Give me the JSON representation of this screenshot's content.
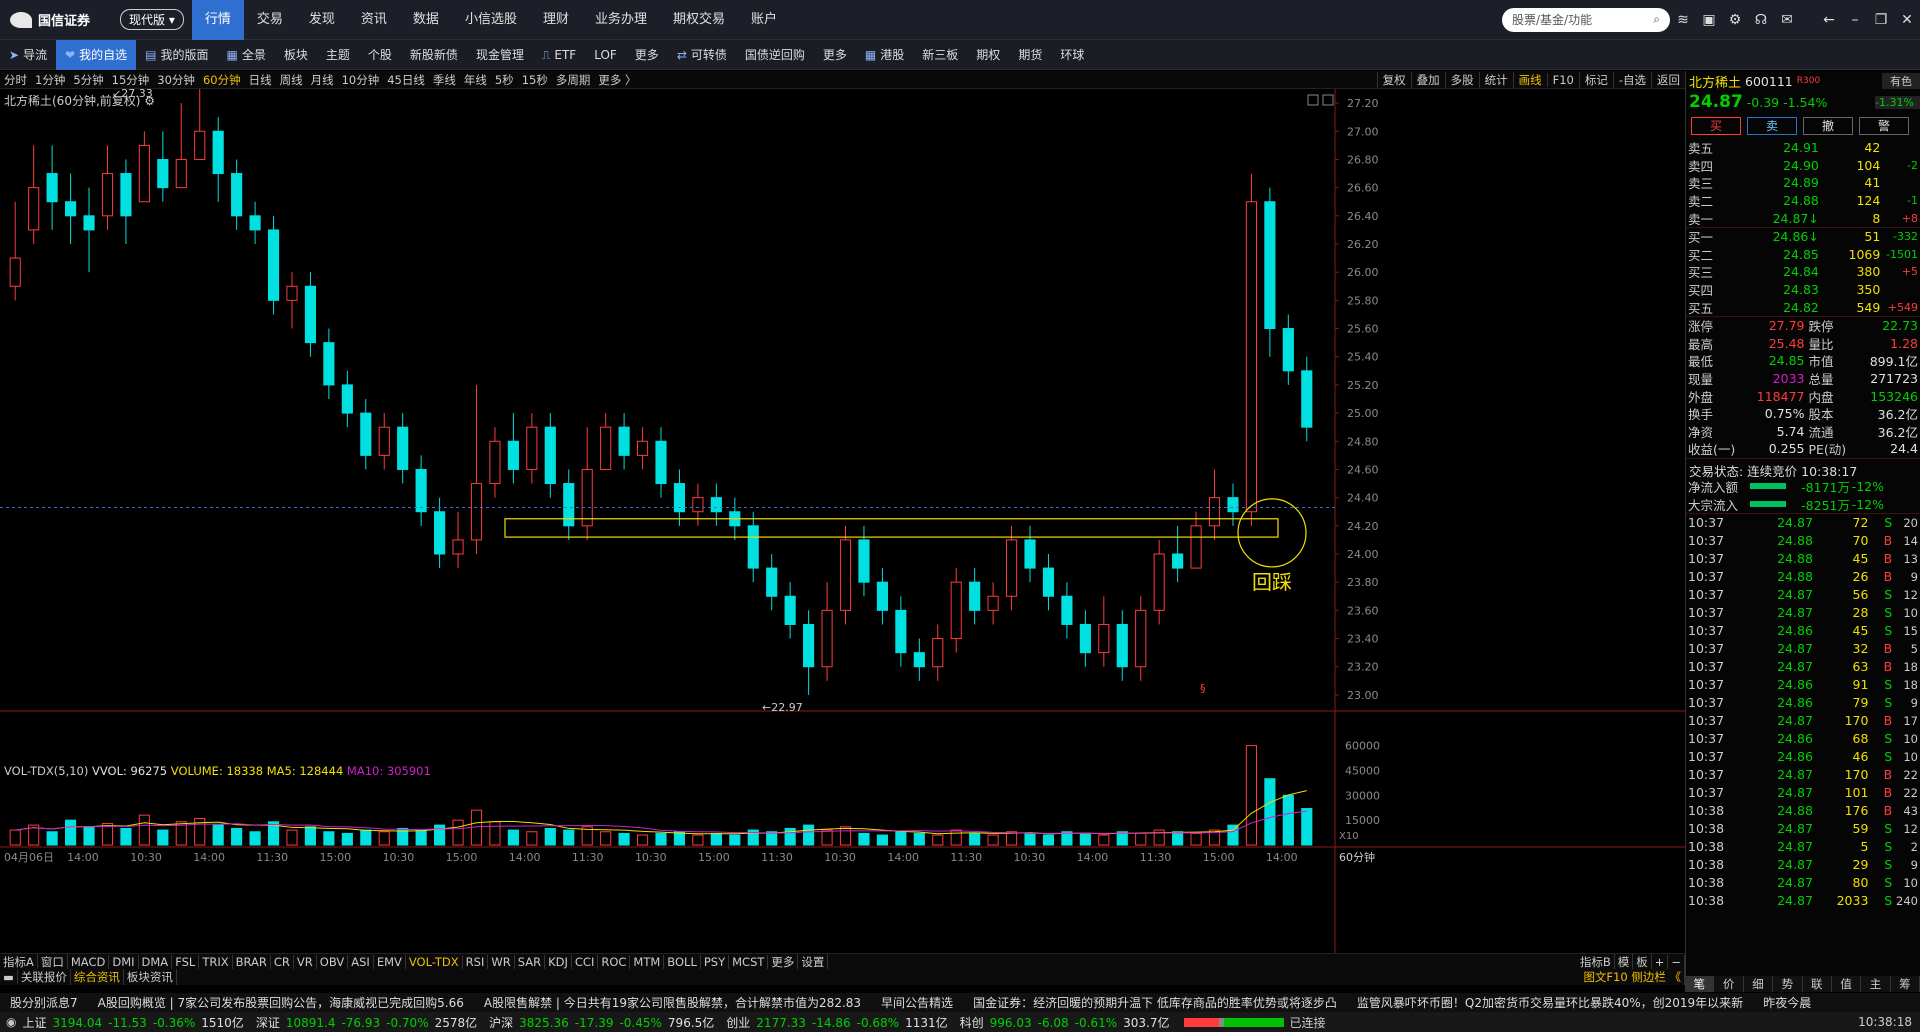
{
  "topbar": {
    "logo": "国信证券",
    "version": "现代版",
    "nav": [
      "行情",
      "交易",
      "发现",
      "资讯",
      "数据",
      "小信选股",
      "理财",
      "业务办理",
      "期权交易",
      "账户"
    ],
    "search_placeholder": "股票/基金/功能"
  },
  "toolbar": {
    "items": [
      "导流",
      "我的自选",
      "我的版面",
      "全景",
      "板块",
      "主题",
      "个股",
      "新股新债",
      "现金管理",
      "ETF",
      "LOF",
      "更多",
      "可转债",
      "国债逆回购",
      "更多",
      "港股",
      "新三板",
      "期权",
      "期货",
      "环球"
    ]
  },
  "periods": [
    "分时",
    "1分钟",
    "5分钟",
    "15分钟",
    "30分钟",
    "60分钟",
    "日线",
    "周线",
    "月线",
    "10分钟",
    "45日线",
    "季线",
    "年线",
    "5秒",
    "15秒",
    "多周期",
    "更多 〉"
  ],
  "period_active": "60分钟",
  "right_buttons": [
    "复权",
    "叠加",
    "多股",
    "统计",
    "画线",
    "F10",
    "标记",
    "-自选",
    "返回"
  ],
  "chart": {
    "title": "北方稀土(60分钟,前复权)",
    "high_label": "27.33",
    "low_label": "22.97",
    "annotation": "回踩",
    "y_ticks": [
      "27.20",
      "27.00",
      "26.80",
      "26.60",
      "26.40",
      "26.20",
      "26.00",
      "25.80",
      "25.60",
      "25.40",
      "25.20",
      "25.00",
      "24.80",
      "24.60",
      "24.40",
      "24.20",
      "24.00",
      "23.80",
      "23.60",
      "23.40",
      "23.20",
      "23.00"
    ],
    "marker": "§"
  },
  "volume": {
    "name": "VOL-TDX(5,10)",
    "vvol": "VVOL: 96275",
    "volume": "VOLUME: 18338",
    "ma5": "MA5: 128444",
    "ma10": "MA10: 305901",
    "y_ticks": [
      "60000",
      "45000",
      "30000",
      "15000"
    ],
    "unit": "X10"
  },
  "x_axis": [
    "04月06日",
    "14:00",
    "10:30",
    "14:00",
    "11:30",
    "15:00",
    "10:30",
    "15:00",
    "14:00",
    "11:30",
    "10:30",
    "15:00",
    "11:30",
    "10:30",
    "14:00",
    "11:30",
    "10:30",
    "14:00",
    "11:30",
    "15:00",
    "14:00"
  ],
  "x_period_label": "60分钟",
  "indicators": [
    "指标A",
    "窗口",
    "MACD",
    "DMI",
    "DMA",
    "FSL",
    "TRIX",
    "BRAR",
    "CR",
    "VR",
    "OBV",
    "ASI",
    "EMV",
    "VOL-TDX",
    "RSI",
    "WR",
    "SAR",
    "KDJ",
    "CCI",
    "ROC",
    "MTM",
    "BOLL",
    "PSY",
    "MCST",
    "更多",
    "设置"
  ],
  "indicator_active": "VOL-TDX",
  "indicator_right": [
    "指标B",
    "模",
    "板",
    "+",
    "−"
  ],
  "subtabs": [
    "关联报价",
    "综合资讯",
    "板块资讯"
  ],
  "subtab_active": "综合资讯",
  "quote": {
    "name": "北方稀土",
    "code": "600111",
    "tag": "R300",
    "sector": "有色",
    "sector_pct": "-1.31%",
    "price": "24.87",
    "change": "-0.39",
    "pct": "-1.54%",
    "buttons": [
      "买",
      "卖",
      "撤",
      "警"
    ],
    "asks": [
      [
        "卖五",
        "24.91",
        "42",
        ""
      ],
      [
        "卖四",
        "24.90",
        "104",
        "-2"
      ],
      [
        "卖三",
        "24.89",
        "41",
        ""
      ],
      [
        "卖二",
        "24.88",
        "124",
        "-1"
      ],
      [
        "卖一",
        "24.87↓",
        "8",
        "+8"
      ]
    ],
    "bids": [
      [
        "买一",
        "24.86↓",
        "51",
        "-332"
      ],
      [
        "买二",
        "24.85",
        "1069",
        "-1501"
      ],
      [
        "买三",
        "24.84",
        "380",
        "+5"
      ],
      [
        "买四",
        "24.83",
        "350",
        ""
      ],
      [
        "买五",
        "24.82",
        "549",
        "+549"
      ]
    ],
    "stats": [
      [
        "涨停",
        "27.79",
        "跌停",
        "22.73"
      ],
      [
        "最高",
        "25.48",
        "量比",
        "1.28"
      ],
      [
        "最低",
        "24.85",
        "市值",
        "899.1亿"
      ],
      [
        "现量",
        "2033",
        "总量",
        "271723"
      ],
      [
        "外盘",
        "118477",
        "内盘",
        "153246"
      ],
      [
        "换手",
        "0.75%",
        "股本",
        "36.2亿"
      ],
      [
        "净资",
        "5.74",
        "流通",
        "36.2亿"
      ],
      [
        "收益(一)",
        "0.255",
        "PE(动)",
        "24.4"
      ]
    ],
    "trade_status": "交易状态: 连续竞价 10:38:17",
    "flows": [
      [
        "净流入额",
        "-8171万",
        "-12%"
      ],
      [
        "大宗流入",
        "-8251万",
        "-12%"
      ]
    ],
    "ticks": [
      [
        "10:37",
        "24.87",
        "72",
        "S",
        "20"
      ],
      [
        "10:37",
        "24.88",
        "70",
        "B",
        "14"
      ],
      [
        "10:37",
        "24.88",
        "45",
        "B",
        "13"
      ],
      [
        "10:37",
        "24.88",
        "26",
        "B",
        "9"
      ],
      [
        "10:37",
        "24.87",
        "56",
        "S",
        "12"
      ],
      [
        "10:37",
        "24.87",
        "28",
        "S",
        "10"
      ],
      [
        "10:37",
        "24.86",
        "45",
        "S",
        "15"
      ],
      [
        "10:37",
        "24.87",
        "32",
        "B",
        "5"
      ],
      [
        "10:37",
        "24.87",
        "63",
        "B",
        "18"
      ],
      [
        "10:37",
        "24.86",
        "91",
        "S",
        "18"
      ],
      [
        "10:37",
        "24.86",
        "79",
        "S",
        "9"
      ],
      [
        "10:37",
        "24.87",
        "170",
        "B",
        "17"
      ],
      [
        "10:37",
        "24.86",
        "68",
        "S",
        "10"
      ],
      [
        "10:37",
        "24.86",
        "46",
        "S",
        "10"
      ],
      [
        "10:37",
        "24.87",
        "170",
        "B",
        "22"
      ],
      [
        "10:37",
        "24.87",
        "101",
        "B",
        "22"
      ],
      [
        "10:38",
        "24.88",
        "176",
        "B",
        "43"
      ],
      [
        "10:38",
        "24.87",
        "59",
        "S",
        "12"
      ],
      [
        "10:38",
        "24.87",
        "5",
        "S",
        "2"
      ],
      [
        "10:38",
        "24.87",
        "29",
        "S",
        "9"
      ],
      [
        "10:38",
        "24.87",
        "80",
        "S",
        "10"
      ],
      [
        "10:38",
        "24.87",
        "2033",
        "S",
        "240"
      ]
    ]
  },
  "sidetabs": [
    "笔",
    "价",
    "细",
    "势",
    "联",
    "值",
    "主",
    "筹"
  ],
  "news": [
    "股分别派息7",
    "A股回购概览 | 7家公司发布股票回购公告，海康威视已完成回购5.66",
    "A股限售解禁 | 今日共有19家公司限售股解禁，合计解禁市值为282.83",
    "早间公告精选",
    "国金证券：经济回暖的预期升温下 低库存商品的胜率优势或将逐步凸",
    "监管风暴吓坏币圈！Q2加密货币交易量环比暴跌40%，创2019年以来新",
    "昨夜今晨"
  ],
  "status": {
    "sh": [
      "上证",
      "3194.04",
      "-11.53",
      "-0.36%",
      "1510亿"
    ],
    "sz": [
      "深证",
      "10891.4",
      "-76.93",
      "-0.70%",
      "2578亿"
    ],
    "hs": [
      "沪深",
      "3825.36",
      "-17.39",
      "-0.45%",
      "796.5亿"
    ],
    "cy": [
      "创业",
      "2177.33",
      "-14.86",
      "-0.68%",
      "1131亿"
    ],
    "kc": [
      "科创",
      "996.03",
      "-6.08",
      "-0.61%",
      "303.7亿"
    ],
    "conn": "已连接",
    "time": "10:38:18"
  },
  "colors": {
    "up": "#ff3b3b",
    "down": "#00e0e0",
    "accent": "#2f6fd0",
    "yellow": "#f0e000"
  },
  "chart_data": {
    "type": "candlestick",
    "title": "北方稀土(60分钟,前复权)",
    "ylim": [
      22.9,
      27.3
    ],
    "candles": [
      [
        25.9,
        26.1,
        26.5,
        25.8
      ],
      [
        26.3,
        26.6,
        26.9,
        26.2
      ],
      [
        26.7,
        26.5,
        26.9,
        26.3
      ],
      [
        26.5,
        26.4,
        26.7,
        26.2
      ],
      [
        26.4,
        26.3,
        26.6,
        26.0
      ],
      [
        26.4,
        26.7,
        26.9,
        26.3
      ],
      [
        26.7,
        26.4,
        26.8,
        26.2
      ],
      [
        26.5,
        26.9,
        27.0,
        26.5
      ],
      [
        26.8,
        26.6,
        27.0,
        26.5
      ],
      [
        26.6,
        26.8,
        27.2,
        26.6
      ],
      [
        26.8,
        27.0,
        27.33,
        26.8
      ],
      [
        27.0,
        26.7,
        27.1,
        26.5
      ],
      [
        26.7,
        26.4,
        26.8,
        26.3
      ],
      [
        26.4,
        26.3,
        26.5,
        26.2
      ],
      [
        26.3,
        25.8,
        26.4,
        25.7
      ],
      [
        25.8,
        25.9,
        26.0,
        25.6
      ],
      [
        25.9,
        25.5,
        26.0,
        25.4
      ],
      [
        25.5,
        25.2,
        25.6,
        25.1
      ],
      [
        25.2,
        25.0,
        25.3,
        24.9
      ],
      [
        25.0,
        24.7,
        25.1,
        24.6
      ],
      [
        24.7,
        24.9,
        25.0,
        24.6
      ],
      [
        24.9,
        24.6,
        25.0,
        24.5
      ],
      [
        24.6,
        24.3,
        24.7,
        24.2
      ],
      [
        24.3,
        24.0,
        24.4,
        23.9
      ],
      [
        24.0,
        24.1,
        24.3,
        23.9
      ],
      [
        24.1,
        24.5,
        25.2,
        24.0
      ],
      [
        24.5,
        24.8,
        24.9,
        24.4
      ],
      [
        24.8,
        24.6,
        25.0,
        24.5
      ],
      [
        24.6,
        24.9,
        25.0,
        24.5
      ],
      [
        24.9,
        24.5,
        25.0,
        24.4
      ],
      [
        24.5,
        24.2,
        24.6,
        24.1
      ],
      [
        24.2,
        24.6,
        24.9,
        24.1
      ],
      [
        24.6,
        24.9,
        25.0,
        24.6
      ],
      [
        24.9,
        24.7,
        25.0,
        24.6
      ],
      [
        24.7,
        24.8,
        24.9,
        24.6
      ],
      [
        24.8,
        24.5,
        24.9,
        24.4
      ],
      [
        24.5,
        24.3,
        24.6,
        24.2
      ],
      [
        24.3,
        24.4,
        24.5,
        24.2
      ],
      [
        24.4,
        24.3,
        24.5,
        24.2
      ],
      [
        24.3,
        24.2,
        24.4,
        24.1
      ],
      [
        24.2,
        23.9,
        24.3,
        23.8
      ],
      [
        23.9,
        23.7,
        24.0,
        23.6
      ],
      [
        23.7,
        23.5,
        23.8,
        23.4
      ],
      [
        23.5,
        23.2,
        23.6,
        23.0
      ],
      [
        23.2,
        23.6,
        23.8,
        23.1
      ],
      [
        23.6,
        24.1,
        24.2,
        23.5
      ],
      [
        24.1,
        23.8,
        24.2,
        23.7
      ],
      [
        23.8,
        23.6,
        23.9,
        23.5
      ],
      [
        23.6,
        23.3,
        23.7,
        23.2
      ],
      [
        23.3,
        23.2,
        23.4,
        23.1
      ],
      [
        23.2,
        23.4,
        23.5,
        23.1
      ],
      [
        23.4,
        23.8,
        23.9,
        23.3
      ],
      [
        23.8,
        23.6,
        23.9,
        23.5
      ],
      [
        23.6,
        23.7,
        23.8,
        23.5
      ],
      [
        23.7,
        24.1,
        24.2,
        23.6
      ],
      [
        24.1,
        23.9,
        24.2,
        23.8
      ],
      [
        23.9,
        23.7,
        24.0,
        23.6
      ],
      [
        23.7,
        23.5,
        23.8,
        23.4
      ],
      [
        23.5,
        23.3,
        23.6,
        23.2
      ],
      [
        23.3,
        23.5,
        23.7,
        23.2
      ],
      [
        23.5,
        23.2,
        23.6,
        23.1
      ],
      [
        23.2,
        23.6,
        23.7,
        23.1
      ],
      [
        23.6,
        24.0,
        24.1,
        23.5
      ],
      [
        24.0,
        23.9,
        24.2,
        23.8
      ],
      [
        23.9,
        24.2,
        24.3,
        23.9
      ],
      [
        24.2,
        24.4,
        24.6,
        24.1
      ],
      [
        24.4,
        24.3,
        24.5,
        24.2
      ],
      [
        24.3,
        26.5,
        26.7,
        24.2
      ],
      [
        26.5,
        25.6,
        26.6,
        25.4
      ],
      [
        25.6,
        25.3,
        25.7,
        25.2
      ],
      [
        25.3,
        24.9,
        25.4,
        24.8
      ]
    ]
  }
}
